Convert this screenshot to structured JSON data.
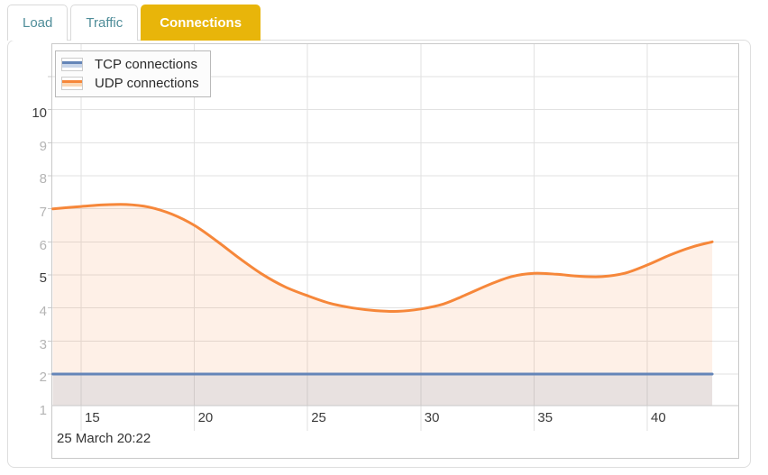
{
  "tabs": [
    {
      "label": "Load",
      "active": false
    },
    {
      "label": "Traffic",
      "active": false
    },
    {
      "label": "Connections",
      "active": true
    }
  ],
  "colors": {
    "active_tab_bg": "#e8b50a",
    "active_tab_text": "#ffffff",
    "tab_text": "#4f8d99",
    "grid": "#e2e2e2",
    "axis_border": "#c9c9c9",
    "tick_label_strong": "#3c3c3c",
    "tick_label_dim": "#b4b4b4"
  },
  "chart_data": {
    "type": "area",
    "title": "",
    "xlabel": "",
    "ylabel": "",
    "xlim": [
      13.7,
      44.0
    ],
    "ylim": [
      0,
      11
    ],
    "grid": true,
    "legend_position": "top-left",
    "footer_timestamp": "25 March 20:22",
    "x_axis": {
      "ticks": [
        15,
        20,
        25,
        30,
        35,
        40
      ],
      "emphasized": []
    },
    "y_axis": {
      "ticks": [
        1,
        2,
        3,
        4,
        5,
        6,
        7,
        8,
        9,
        10
      ],
      "emphasized": [
        5,
        10
      ]
    },
    "series": [
      {
        "name": "TCP connections",
        "color": "#6485b8",
        "fill_rgba": "rgba(100,133,184,0.14)",
        "swatch_fill": "#c9d6ea",
        "points": [
          [
            13.75,
            1
          ],
          [
            42.87,
            1
          ]
        ]
      },
      {
        "name": "UDP connections",
        "color": "#f6873a",
        "fill_rgba": "rgba(246,135,58,0.12)",
        "swatch_fill": "#fbd8b5",
        "points": [
          [
            13.75,
            6.0
          ],
          [
            15,
            6.07
          ],
          [
            16,
            6.12
          ],
          [
            17,
            6.13
          ],
          [
            18,
            6.05
          ],
          [
            19,
            5.84
          ],
          [
            20,
            5.5
          ],
          [
            21,
            5.02
          ],
          [
            22,
            4.5
          ],
          [
            23,
            4.02
          ],
          [
            24,
            3.64
          ],
          [
            25,
            3.37
          ],
          [
            26,
            3.14
          ],
          [
            27,
            3.0
          ],
          [
            28,
            2.92
          ],
          [
            29,
            2.9
          ],
          [
            30,
            2.97
          ],
          [
            31,
            3.12
          ],
          [
            32,
            3.4
          ],
          [
            33,
            3.7
          ],
          [
            34,
            3.95
          ],
          [
            35,
            4.05
          ],
          [
            36,
            4.02
          ],
          [
            37,
            3.96
          ],
          [
            38,
            3.95
          ],
          [
            39,
            4.05
          ],
          [
            40,
            4.3
          ],
          [
            41,
            4.6
          ],
          [
            42,
            4.85
          ],
          [
            42.87,
            5.0
          ]
        ]
      }
    ]
  }
}
